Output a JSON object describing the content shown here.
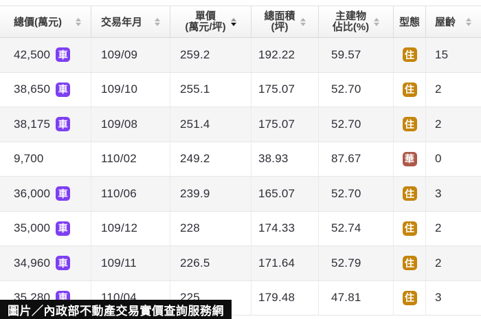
{
  "table": {
    "columns": [
      {
        "id": "price",
        "label": "總價(萬元)",
        "sortable": true
      },
      {
        "id": "date",
        "label": "交易年月",
        "sortable": true
      },
      {
        "id": "unit_price",
        "label": "單價",
        "label2": "(萬元/坪)",
        "sortable": true
      },
      {
        "id": "area",
        "label": "總面積",
        "label2": "(坪)",
        "sortable": true
      },
      {
        "id": "ratio",
        "label": "主建物",
        "label2": "佔比(%)",
        "sortable": true
      },
      {
        "id": "type",
        "label": "型態",
        "sortable": false
      },
      {
        "id": "age",
        "label": "屋齡",
        "sortable": true
      }
    ],
    "sort": {
      "column": "unit_price",
      "direction": "desc"
    },
    "rows": [
      {
        "price": "42,500",
        "badge": "車",
        "date": "109/09",
        "unit_price": "259.2",
        "area": "192.22",
        "ratio": "59.57",
        "type": "住",
        "age": "15"
      },
      {
        "price": "38,650",
        "badge": "車",
        "date": "109/10",
        "unit_price": "255.1",
        "area": "175.07",
        "ratio": "52.70",
        "type": "住",
        "age": "2"
      },
      {
        "price": "38,175",
        "badge": "車",
        "date": "109/08",
        "unit_price": "251.4",
        "area": "175.07",
        "ratio": "52.70",
        "type": "住",
        "age": "2"
      },
      {
        "price": "9,700",
        "badge": "",
        "date": "110/02",
        "unit_price": "249.2",
        "area": "38.93",
        "ratio": "87.67",
        "type": "華",
        "age": "0"
      },
      {
        "price": "36,000",
        "badge": "車",
        "date": "110/06",
        "unit_price": "239.9",
        "area": "165.07",
        "ratio": "52.70",
        "type": "住",
        "age": "3"
      },
      {
        "price": "35,000",
        "badge": "車",
        "date": "109/12",
        "unit_price": "228",
        "area": "174.33",
        "ratio": "52.74",
        "type": "住",
        "age": "2"
      },
      {
        "price": "34,960",
        "badge": "車",
        "date": "109/11",
        "unit_price": "226.5",
        "area": "171.64",
        "ratio": "52.79",
        "type": "住",
        "age": "2"
      },
      {
        "price": "35,280",
        "badge": "車",
        "date": "110/04",
        "unit_price": "225",
        "area": "179.48",
        "ratio": "47.81",
        "type": "住",
        "age": "3"
      }
    ]
  },
  "colors": {
    "car_badge": "#7e3ff2",
    "type_badges": {
      "住": "#c4850c",
      "華": "#ad5a4b"
    },
    "sort_active": "#161616",
    "sort_inactive": "#b5b5b5"
  },
  "caption": "圖片／內政部不動產交易實價查詢服務網"
}
